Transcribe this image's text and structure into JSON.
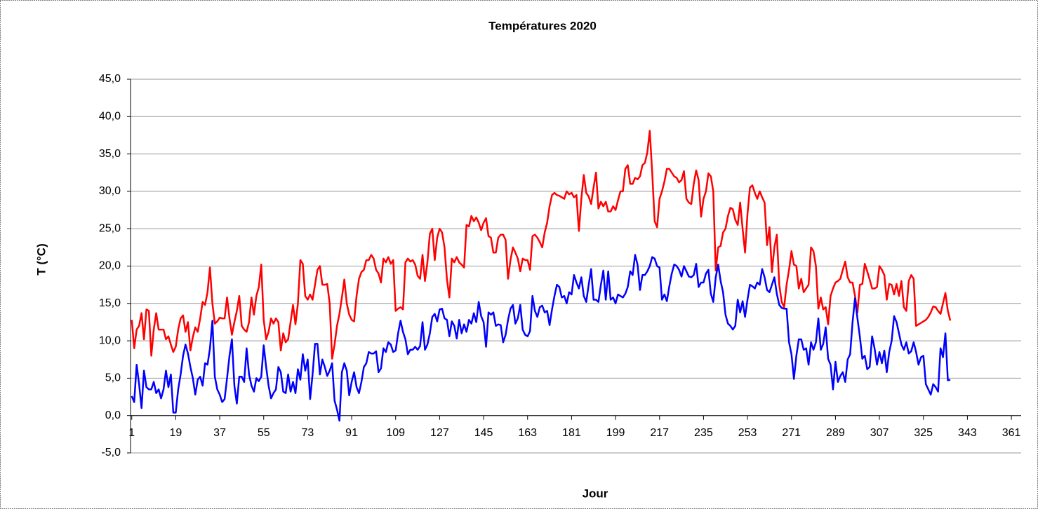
{
  "chart_data": {
    "type": "line",
    "title": "Températures 2020",
    "xlabel": "Jour",
    "ylabel": "T (°C)",
    "x": [
      1,
      2,
      3,
      4,
      5,
      6,
      7,
      8,
      9,
      10,
      11,
      12,
      13,
      14,
      15,
      16,
      17,
      18,
      19,
      20,
      21,
      22,
      23,
      24,
      25,
      26,
      27,
      28,
      29,
      30,
      31,
      32,
      33,
      34,
      35,
      36,
      37,
      38,
      39,
      40,
      41,
      42,
      43,
      44,
      45,
      46,
      47,
      48,
      49,
      50,
      51,
      52,
      53,
      54,
      55,
      56,
      57,
      58,
      59,
      60,
      61,
      62,
      63,
      64,
      65,
      66,
      67,
      68,
      69,
      70,
      71,
      72,
      73,
      74,
      75,
      76,
      77,
      78,
      79,
      80,
      81,
      82,
      83,
      84,
      85,
      86,
      87,
      88,
      89,
      90,
      91,
      92,
      93,
      94,
      95,
      96,
      97,
      98,
      99,
      100,
      101,
      102,
      103,
      104,
      105,
      106,
      107,
      108,
      109,
      110,
      111,
      112,
      113,
      114,
      115,
      116,
      117,
      118,
      119,
      120,
      121,
      122,
      123,
      124,
      125,
      126,
      127,
      128,
      129,
      130,
      131,
      132,
      133,
      134,
      135,
      136,
      137,
      138,
      139,
      140,
      141,
      142,
      143,
      144,
      145,
      146,
      147,
      148,
      149,
      150,
      151,
      152,
      153,
      154,
      155,
      156,
      157,
      158,
      159,
      160,
      161,
      162,
      163,
      164,
      165,
      166,
      167,
      168,
      169,
      170,
      171,
      172,
      173,
      174,
      175,
      176,
      177,
      178,
      179,
      180,
      181,
      182,
      183,
      184,
      185,
      186,
      187,
      188,
      189,
      190,
      191,
      192,
      193,
      194,
      195,
      196,
      197,
      198,
      199,
      200,
      201,
      202,
      203,
      204,
      205,
      206,
      207,
      208,
      209,
      210,
      211,
      212,
      213,
      214,
      215,
      216,
      217,
      218,
      219,
      220,
      221,
      222,
      223,
      224,
      225,
      226,
      227,
      228,
      229,
      230,
      231,
      232,
      233,
      234,
      235,
      236,
      237,
      238,
      239,
      240,
      241,
      242,
      243,
      244,
      245,
      246,
      247,
      248,
      249,
      250,
      251,
      252,
      253,
      254,
      255,
      256,
      257,
      258,
      259,
      260,
      261,
      262,
      263,
      264,
      265,
      266,
      267,
      268,
      269,
      270,
      271,
      272,
      273,
      274,
      275,
      276,
      277,
      278,
      279,
      280,
      281,
      282,
      283,
      284,
      285,
      286,
      287,
      288,
      289,
      290,
      291,
      292,
      293,
      294,
      295,
      296,
      297,
      298,
      299,
      300,
      301,
      302,
      303,
      304,
      305,
      306,
      307,
      308,
      309,
      310,
      311,
      312,
      313,
      314,
      315,
      316,
      317,
      318,
      319,
      320,
      321,
      322,
      323,
      324,
      325,
      326,
      327,
      328,
      329,
      330,
      331,
      332,
      333,
      334,
      335,
      336
    ],
    "series": [
      {
        "color": "#ff0000",
        "values": [
          12.8,
          9,
          11.5,
          12,
          13.7,
          10.2,
          14.2,
          14,
          8,
          11.5,
          13.7,
          11.5,
          11.5,
          11.5,
          10.2,
          10.6,
          9.5,
          8.5,
          9.2,
          11.5,
          13,
          13.4,
          11.2,
          12.5,
          8.7,
          10.5,
          11.8,
          11.2,
          13,
          15.2,
          14.8,
          16.5,
          19.8,
          15,
          12.3,
          12.6,
          13.1,
          13,
          13,
          15.8,
          13,
          10.8,
          12.5,
          14,
          16,
          12,
          11.5,
          11.2,
          12.5,
          15.8,
          13.5,
          16,
          17.2,
          20.2,
          12.8,
          10.2,
          11.2,
          13,
          12.3,
          13,
          12.5,
          8.7,
          11,
          9.8,
          10.2,
          12.5,
          14.8,
          12.2,
          15,
          20.8,
          20.3,
          16,
          15.5,
          16.2,
          15.5,
          17.5,
          19.5,
          20,
          17.5,
          17.5,
          17.6,
          15,
          7.6,
          9.5,
          12,
          13.6,
          15.8,
          18.2,
          15,
          13.5,
          12.8,
          12.6,
          16,
          18.3,
          19.2,
          19.5,
          20.8,
          20.8,
          21.5,
          21,
          19.5,
          19,
          17.8,
          21,
          20.5,
          21.2,
          20.3,
          20.8,
          14,
          14.3,
          14.5,
          14.2,
          20.5,
          21,
          20.6,
          20.8,
          20.2,
          18.7,
          18.3,
          21.5,
          18,
          20.5,
          24.3,
          25,
          20.8,
          23.8,
          25,
          24.5,
          22.5,
          18.2,
          15.8,
          21,
          20.5,
          21.2,
          20.5,
          20.2,
          19.8,
          25.5,
          25.3,
          26.7,
          26,
          26.5,
          25.8,
          24.8,
          25.8,
          26.4,
          24,
          23.8,
          21.8,
          21.8,
          23.8,
          24.2,
          24.2,
          23.5,
          18.3,
          20.8,
          22.5,
          21.8,
          21,
          19.3,
          21,
          20.8,
          20.8,
          19.5,
          24,
          24.2,
          23.8,
          23.2,
          22.5,
          24.5,
          25.8,
          28,
          29.5,
          29.8,
          29.5,
          29.4,
          29.2,
          29,
          30,
          29.6,
          29.8,
          29.2,
          29.5,
          24.7,
          29,
          32.2,
          29.8,
          29.3,
          28.3,
          30.5,
          32.5,
          27.7,
          28.6,
          28,
          28.6,
          27.3,
          27.3,
          28,
          27.5,
          28.8,
          30,
          30,
          33,
          33.5,
          31,
          31,
          31.8,
          31.6,
          32,
          33.5,
          33.8,
          35.2,
          38.1,
          32.5,
          26,
          25.2,
          29,
          30,
          31.3,
          33,
          33,
          32.5,
          32,
          31.8,
          31.2,
          31.5,
          32.7,
          29,
          28.5,
          28.3,
          31,
          32.8,
          31.5,
          26.6,
          29,
          30,
          32.4,
          32,
          30,
          19.4,
          22.5,
          22.7,
          24.5,
          25,
          26.7,
          27.8,
          27.6,
          26.2,
          25.5,
          28.5,
          25,
          21.8,
          27,
          30.5,
          30.8,
          29.8,
          29,
          30,
          29.2,
          28.5,
          22.8,
          25.2,
          19.2,
          22.5,
          24.2,
          17.5,
          15.2,
          14.5,
          17.5,
          19.5,
          22,
          20.2,
          20,
          17,
          18.3,
          16.5,
          17,
          17.5,
          22.5,
          22,
          20,
          14.3,
          15.8,
          14.2,
          14.5,
          12.2,
          16,
          17,
          17.8,
          18,
          18.3,
          19.5,
          20.6,
          18.5,
          17.8,
          17.8,
          16,
          13.8,
          17.5,
          17.6,
          20.3,
          19.3,
          18.2,
          17,
          17,
          17.2,
          20,
          19.5,
          18.8,
          15.5,
          17.6,
          17.5,
          16.2,
          17.6,
          16,
          18,
          14.5,
          14,
          18,
          18.8,
          18.3,
          12,
          12.2,
          12.4,
          12.6,
          12.8,
          13.2,
          13.8,
          14.6,
          14.5,
          14,
          13.6,
          15,
          16.4,
          14,
          12.7
        ]
      },
      {
        "color": "#0000ff",
        "values": [
          2.6,
          1.8,
          6.8,
          4.2,
          1,
          6,
          3.8,
          3.5,
          3.5,
          4.5,
          3,
          3.5,
          2.3,
          3.5,
          6,
          3.8,
          5.5,
          0.4,
          0.4,
          3.5,
          5.5,
          8,
          9.5,
          8.3,
          6.5,
          5,
          2.8,
          4.8,
          5.2,
          4,
          7,
          6.8,
          9,
          12.7,
          5.2,
          3.5,
          2.8,
          1.8,
          2.2,
          5,
          8,
          10.2,
          4,
          1.6,
          5.2,
          5.2,
          4.5,
          9,
          5.5,
          4,
          3.2,
          5,
          4.6,
          5.2,
          9.4,
          6.5,
          4,
          2.3,
          3,
          3.5,
          6.5,
          5.8,
          3.2,
          3,
          5.5,
          3.2,
          4.5,
          3,
          6.2,
          4.8,
          8.2,
          6,
          7.5,
          2.2,
          5.5,
          9.6,
          9.6,
          5.5,
          7.5,
          6.5,
          5.3,
          6,
          7,
          2,
          0.8,
          -0.7,
          5.8,
          7,
          6,
          2.7,
          4.5,
          5.8,
          3.8,
          3,
          4.5,
          6.5,
          7,
          8.5,
          8.3,
          8.3,
          8.6,
          5.8,
          6.3,
          9,
          8.5,
          9.8,
          9.5,
          8.5,
          8.7,
          11,
          12.7,
          11.2,
          10.2,
          8.2,
          8.8,
          8.8,
          9.2,
          8.8,
          9.3,
          12.5,
          8.8,
          9.5,
          11,
          13.2,
          13.6,
          12.6,
          14.2,
          14.3,
          13,
          12.8,
          10.6,
          12.6,
          12,
          10.3,
          12.8,
          11,
          12.2,
          11.2,
          12.8,
          12.3,
          13.7,
          12.5,
          15.2,
          13.3,
          12.5,
          9.2,
          13.8,
          13.5,
          13.8,
          12,
          12.2,
          12.1,
          9.8,
          10.8,
          12.8,
          14.3,
          14.8,
          12.3,
          13,
          14.8,
          11.5,
          10.8,
          10.6,
          11.3,
          16,
          14,
          13.2,
          14.5,
          14.7,
          13.8,
          14,
          12.1,
          14.2,
          16,
          17.5,
          17.2,
          15.8,
          16,
          15,
          16.5,
          16.2,
          18.8,
          17.8,
          17,
          18.5,
          16,
          15.2,
          17.5,
          19.6,
          15.5,
          15.5,
          15.2,
          17.5,
          19.4,
          15.5,
          19.3,
          15.5,
          15.8,
          15,
          16.2,
          16,
          15.8,
          16.3,
          17.2,
          19.3,
          18.8,
          21.5,
          20.2,
          16.8,
          18.8,
          18.8,
          19.3,
          20,
          21.2,
          21,
          20,
          19.8,
          15.5,
          16.2,
          15.3,
          17.3,
          19,
          20.2,
          20,
          19.5,
          18.6,
          20,
          19.3,
          18.6,
          18.5,
          18.8,
          20.3,
          17.2,
          17.8,
          17.8,
          19,
          19.5,
          16.3,
          15.2,
          18.5,
          20.2,
          18,
          16.5,
          13.5,
          12.3,
          12,
          11.5,
          12,
          15.5,
          13.8,
          15.3,
          13.2,
          15.5,
          17.5,
          17.3,
          17,
          17.8,
          17.5,
          19.6,
          18.5,
          16.8,
          16.5,
          17.5,
          18.5,
          16.3,
          14.8,
          14.4,
          14.3,
          14.3,
          9.8,
          8.2,
          4.9,
          8,
          10.2,
          10.2,
          8.8,
          9,
          6.8,
          9.8,
          8.8,
          9.8,
          13,
          8.8,
          9.6,
          11.8,
          7.6,
          6.8,
          3.5,
          7.2,
          4.5,
          5.3,
          5.8,
          4.5,
          7.5,
          8.2,
          12.5,
          15.7,
          13,
          10.5,
          7.6,
          8,
          6.2,
          6.5,
          10.6,
          9,
          6.8,
          8.5,
          7,
          8.7,
          5.8,
          8.5,
          10,
          13.3,
          12.5,
          11,
          9.5,
          8.8,
          9.8,
          8.3,
          8.6,
          9.8,
          8.5,
          6.8,
          7.8,
          8,
          4.2,
          3.5,
          2.8,
          4.2,
          3.8,
          3.2,
          9,
          7.8,
          11,
          4.7,
          4.8
        ]
      }
    ],
    "xlim": [
      0.5,
      365
    ],
    "xticks": [
      1,
      19,
      37,
      55,
      73,
      91,
      109,
      127,
      145,
      163,
      181,
      199,
      217,
      235,
      253,
      271,
      289,
      307,
      325,
      343,
      361
    ],
    "ylim": [
      -5,
      45
    ],
    "yticks": [
      {
        "value": -5,
        "label": "-5,0"
      },
      {
        "value": 0,
        "label": "0,0"
      },
      {
        "value": 5,
        "label": "5,0"
      },
      {
        "value": 10,
        "label": "10,0"
      },
      {
        "value": 15,
        "label": "15,0"
      },
      {
        "value": 20,
        "label": "20,0"
      },
      {
        "value": 25,
        "label": "25,0"
      },
      {
        "value": 30,
        "label": "30,0"
      },
      {
        "value": 35,
        "label": "35,0"
      },
      {
        "value": 40,
        "label": "40,0"
      },
      {
        "value": 45,
        "label": "45,0"
      }
    ],
    "grid": true
  }
}
